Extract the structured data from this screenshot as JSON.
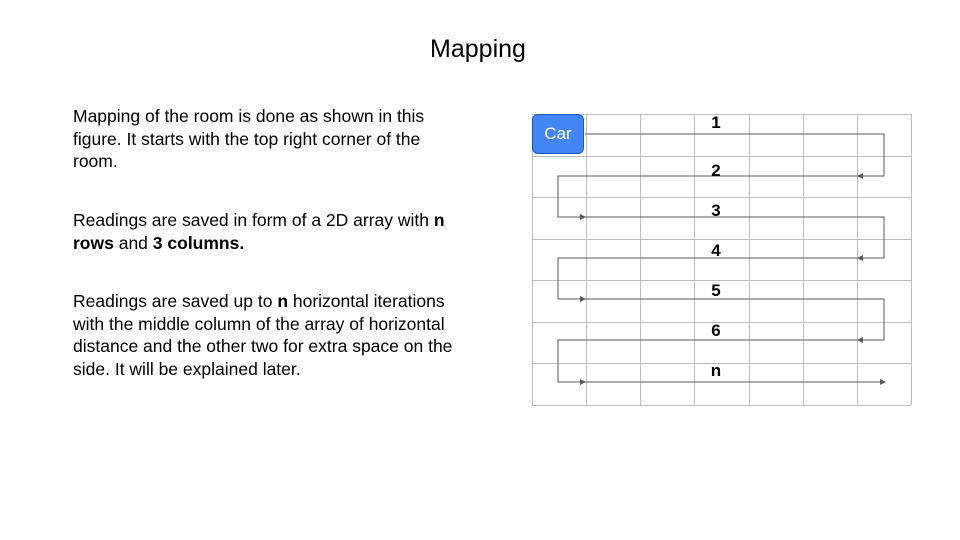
{
  "slide": {
    "title": "Mapping"
  },
  "text": {
    "p1": "Mapping of the room is done as shown in this figure. It starts with the top right corner of the room.",
    "p2_prefix": "Readings are saved in form of a 2D array with ",
    "p2_bold1": "n rows",
    "p2_middle": " and ",
    "p2_bold2": "3 columns.",
    "p3_prefix": "Readings are saved up to ",
    "p3_bold": "n",
    "p3_suffix": " horizontal iterations with the middle column of the array of horizontal distance and the other two for extra space on the side. It will be explained later."
  },
  "diagram": {
    "car_label": "Car",
    "grid_columns": 7,
    "grid_rows": 7,
    "row_labels": [
      "1",
      "2",
      "3",
      "4",
      "5",
      "6",
      "n"
    ],
    "accent_color": "#4285f4",
    "grid_color": "#bdbdbd",
    "path_color": "#595959"
  }
}
